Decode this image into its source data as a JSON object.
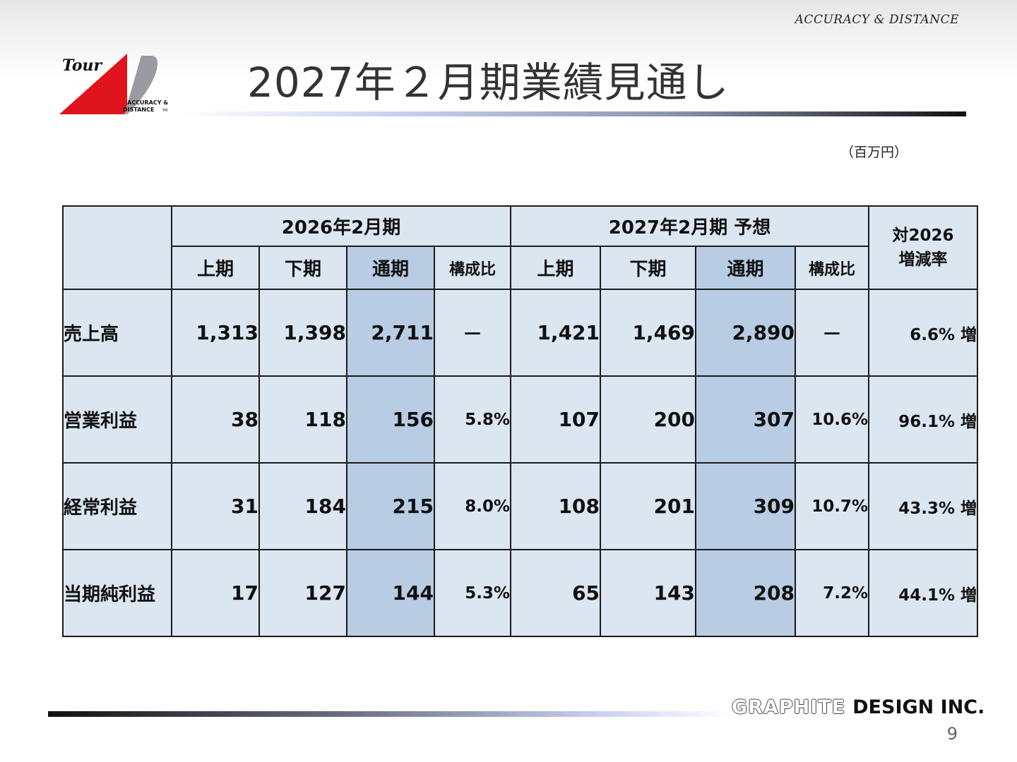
{
  "header": {
    "tagline": "ACCURACY & DISTANCE",
    "title": "2027年２月期業績見通し",
    "logo": {
      "script_text": "Tour",
      "line1": "ACCURACY &",
      "line2": "DISTANCE",
      "tm": "TM"
    }
  },
  "unit_label": "（百万円）",
  "table": {
    "group_headers": {
      "prior": "2026年2月期",
      "forecast": "2027年2月期 予想",
      "change": "対2026\n増減率"
    },
    "sub_headers": [
      "上期",
      "下期",
      "通期",
      "構成比",
      "上期",
      "下期",
      "通期",
      "構成比"
    ],
    "rows": [
      {
        "label": "売上高",
        "prior_h1": "1,313",
        "prior_h2": "1,398",
        "prior_full": "2,711",
        "prior_ratio": "－",
        "fc_h1": "1,421",
        "fc_h2": "1,469",
        "fc_full": "2,890",
        "fc_ratio": "－",
        "change": "6.6% 増"
      },
      {
        "label": "営業利益",
        "prior_h1": "38",
        "prior_h2": "118",
        "prior_full": "156",
        "prior_ratio": "5.8%",
        "fc_h1": "107",
        "fc_h2": "200",
        "fc_full": "307",
        "fc_ratio": "10.6%",
        "change": "96.1% 増"
      },
      {
        "label": "経常利益",
        "prior_h1": "31",
        "prior_h2": "184",
        "prior_full": "215",
        "prior_ratio": "8.0%",
        "fc_h1": "108",
        "fc_h2": "201",
        "fc_full": "309",
        "fc_ratio": "10.7%",
        "change": "43.3% 増"
      },
      {
        "label": "当期純利益",
        "prior_h1": "17",
        "prior_h2": "127",
        "prior_full": "144",
        "prior_ratio": "5.3%",
        "fc_h1": "65",
        "fc_h2": "143",
        "fc_full": "208",
        "fc_ratio": "7.2%",
        "change": "44.1% 増"
      }
    ]
  },
  "footer": {
    "company_outline": "GRAPHITE",
    "company_solid": "DESIGN INC.",
    "page_number": "9"
  },
  "colors": {
    "table_bg": "#dce6f1",
    "highlight_col": "#b8cce4",
    "logo_red": "#e0141c",
    "logo_gray": "#9a9aa2"
  }
}
